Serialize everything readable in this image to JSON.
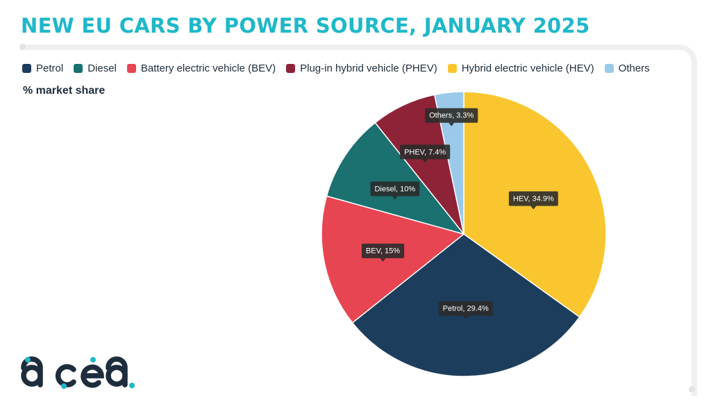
{
  "title": "NEW EU CARS BY POWER SOURCE, JANUARY 2025",
  "subtitle": "% market share",
  "logo_text": "acea",
  "chart_data": {
    "type": "pie",
    "title": "NEW EU CARS BY POWER SOURCE, JANUARY 2025",
    "subtitle": "% market share",
    "legend_position": "top",
    "legend": [
      {
        "name": "Petrol",
        "color": "#1d3d5c"
      },
      {
        "name": "Diesel",
        "color": "#1b7070"
      },
      {
        "name": "Battery electric vehicle (BEV)",
        "color": "#e84552"
      },
      {
        "name": "Plug-in hybrid vehicle (PHEV)",
        "color": "#8e2337"
      },
      {
        "name": "Hybrid electric vehicle (HEV)",
        "color": "#f9c630"
      },
      {
        "name": "Others",
        "color": "#9bc9ea"
      }
    ],
    "slices": [
      {
        "name": "HEV",
        "value": 34.9,
        "label": "HEV, 34.9%",
        "color": "#f9c630"
      },
      {
        "name": "Petrol",
        "value": 29.4,
        "label": "Petrol, 29.4%",
        "color": "#1d3d5c"
      },
      {
        "name": "BEV",
        "value": 15,
        "label": "BEV, 15%",
        "color": "#e84552"
      },
      {
        "name": "Diesel",
        "value": 10,
        "label": "Diesel, 10%",
        "color": "#1b7070"
      },
      {
        "name": "PHEV",
        "value": 7.4,
        "label": "PHEV, 7.4%",
        "color": "#8e2337"
      },
      {
        "name": "Others",
        "value": 3.3,
        "label": "Others, 3.3%",
        "color": "#9bc9ea"
      }
    ]
  }
}
